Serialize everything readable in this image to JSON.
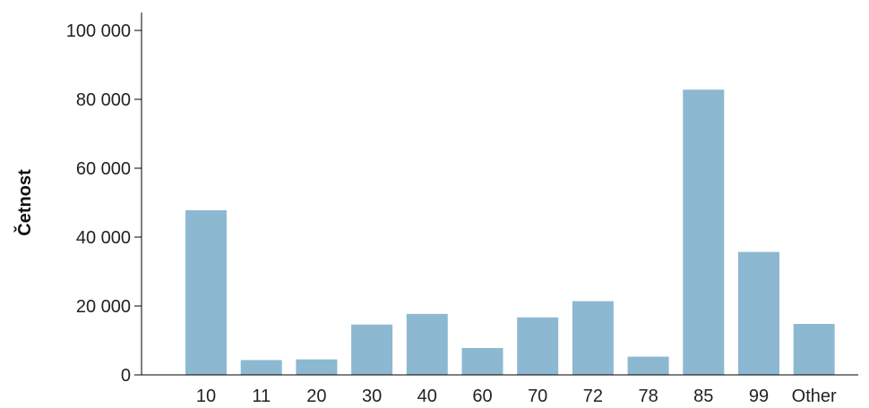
{
  "chart_data": {
    "type": "bar",
    "title": "",
    "xlabel": "",
    "ylabel": "Četnost",
    "categories": [
      "10",
      "11",
      "20",
      "30",
      "40",
      "60",
      "70",
      "72",
      "78",
      "85",
      "99",
      "Other"
    ],
    "values": [
      47800,
      4300,
      4500,
      14600,
      17700,
      7800,
      16700,
      21400,
      5300,
      82800,
      35700,
      14800
    ],
    "ylim": [
      0,
      100000
    ],
    "yticks": [
      0,
      20000,
      40000,
      60000,
      80000,
      100000
    ],
    "ytick_labels": [
      "0",
      "20 000",
      "40 000",
      "60 000",
      "80 000",
      "100 000"
    ],
    "grid": false,
    "legend": "none",
    "colors": {
      "bar": "#8db8d1",
      "axis": "#000000"
    }
  }
}
